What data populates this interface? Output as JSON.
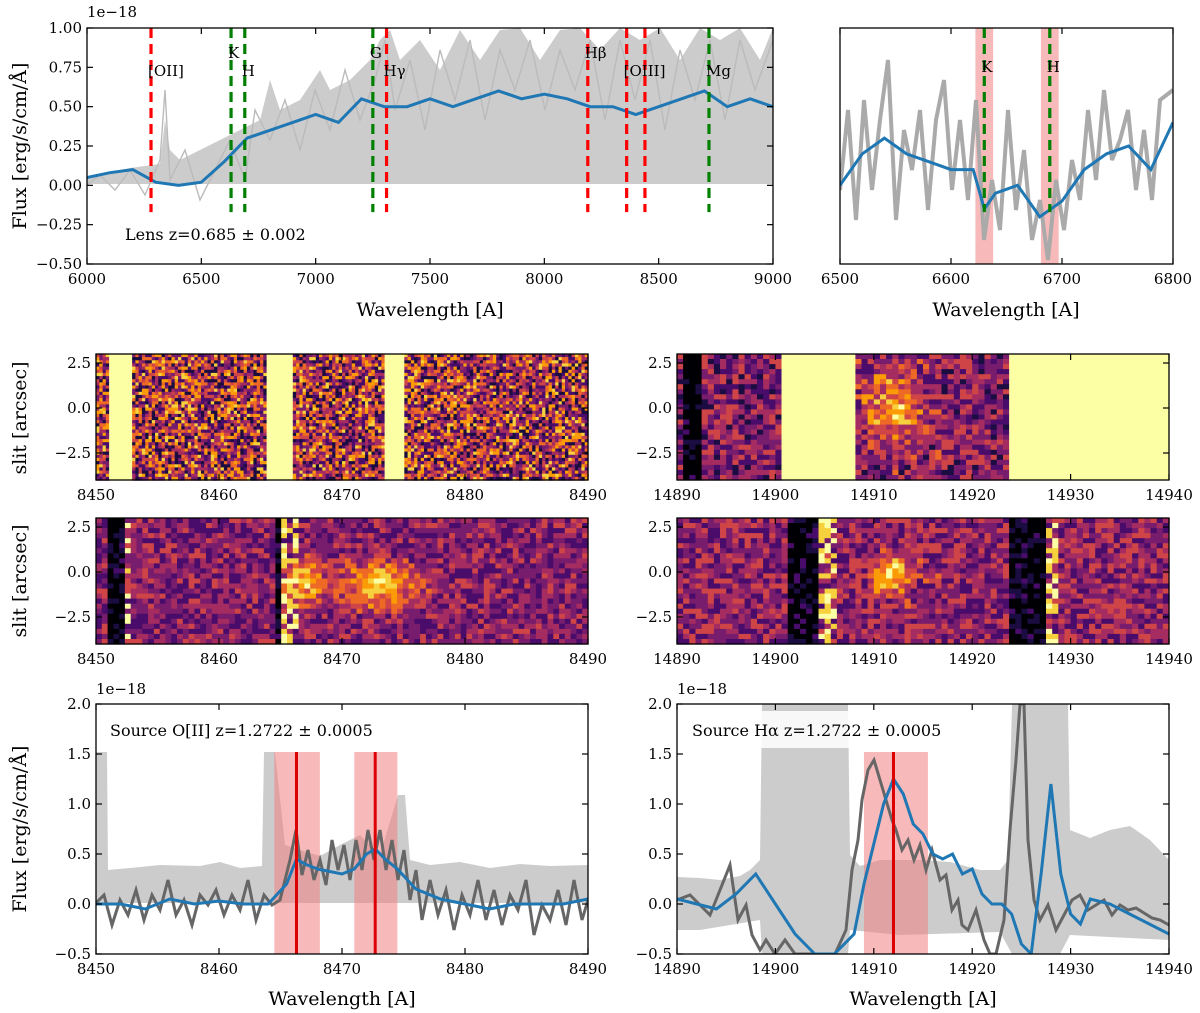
{
  "chart_data": [
    {
      "id": "spec-lens",
      "type": "line",
      "xlim": [
        6000,
        9000
      ],
      "ylim": [
        -0.5,
        1.0
      ],
      "xticks": [
        6000,
        6500,
        7000,
        7500,
        8000,
        8500,
        9000
      ],
      "yticks": [
        -0.5,
        -0.25,
        0.0,
        0.25,
        0.5,
        0.75,
        1.0
      ],
      "ytick_labels": [
        "−0.50",
        "−0.25",
        "0.00",
        "0.25",
        "0.50",
        "0.75",
        "1.00"
      ],
      "xlabel": "Wavelength [A]",
      "ylabel": "Flux [erg/s/cm/Å]",
      "exponent": "1e−18",
      "annotation": "Lens z=0.685 ± 0.002",
      "lines": [
        {
          "x": 6280,
          "label": "[OII]",
          "color": "#ff0000"
        },
        {
          "x": 6630,
          "label": "K",
          "color": "#008000"
        },
        {
          "x": 6690,
          "label": "H",
          "color": "#008000"
        },
        {
          "x": 7250,
          "label": "G",
          "color": "#008000"
        },
        {
          "x": 7310,
          "label": "Hγ",
          "color": "#ff0000"
        },
        {
          "x": 8190,
          "label": "Hβ",
          "color": "#ff0000"
        },
        {
          "x": 8360,
          "label": "[OIII]",
          "color": "#ff0000"
        },
        {
          "x": 8440,
          "label": "",
          "color": "#ff0000"
        },
        {
          "x": 8720,
          "label": "Mg",
          "color": "#008000"
        }
      ],
      "series": [
        {
          "name": "smoothed spectrum",
          "color": "#1f77b4",
          "x": [
            6000,
            6100,
            6200,
            6300,
            6400,
            6500,
            6600,
            6700,
            6800,
            6900,
            7000,
            7100,
            7200,
            7300,
            7400,
            7500,
            7600,
            7700,
            7800,
            7900,
            8000,
            8100,
            8200,
            8300,
            8400,
            8500,
            8600,
            8700,
            8800,
            8900,
            9000
          ],
          "y": [
            0.05,
            0.08,
            0.1,
            0.02,
            0.0,
            0.02,
            0.15,
            0.3,
            0.35,
            0.4,
            0.45,
            0.4,
            0.55,
            0.5,
            0.5,
            0.55,
            0.5,
            0.55,
            0.6,
            0.55,
            0.58,
            0.55,
            0.5,
            0.5,
            0.45,
            0.5,
            0.55,
            0.6,
            0.5,
            0.55,
            0.5
          ]
        }
      ]
    },
    {
      "id": "spec-lens-zoom",
      "type": "line",
      "xlim": [
        6500,
        6800
      ],
      "ylim": [
        -0.5,
        1.0
      ],
      "xticks": [
        6500,
        6600,
        6700,
        6800
      ],
      "xlabel": "Wavelength [A]",
      "bands": [
        {
          "x0": 6622,
          "x1": 6638
        },
        {
          "x0": 6681,
          "x1": 6697
        }
      ],
      "lines": [
        {
          "x": 6630,
          "label": "K",
          "color": "#008000"
        },
        {
          "x": 6689,
          "label": "H",
          "color": "#008000"
        }
      ],
      "series": [
        {
          "name": "smoothed spectrum",
          "color": "#1f77b4",
          "x": [
            6500,
            6520,
            6540,
            6560,
            6580,
            6600,
            6620,
            6630,
            6640,
            6660,
            6680,
            6700,
            6720,
            6740,
            6760,
            6780,
            6800
          ],
          "y": [
            0.0,
            0.2,
            0.3,
            0.2,
            0.15,
            0.1,
            0.1,
            -0.15,
            -0.05,
            0.0,
            -0.2,
            -0.1,
            0.1,
            0.2,
            0.25,
            0.1,
            0.4
          ]
        }
      ]
    },
    {
      "id": "img-8450-top",
      "type": "heatmap",
      "xlim": [
        8450,
        8490
      ],
      "ylim": [
        -4,
        3
      ],
      "xticks": [
        8450,
        8460,
        8470,
        8480,
        8490
      ],
      "yticks": [
        -2.5,
        0.0,
        2.5
      ],
      "ytick_labels": [
        "−2.5",
        "0.0",
        "2.5"
      ],
      "ylabel": "slit [arcsec]",
      "saturated_columns": [
        [
          8451,
          8453
        ],
        [
          8464,
          8466
        ],
        [
          8473.5,
          8475
        ]
      ]
    },
    {
      "id": "img-14890-top",
      "type": "heatmap",
      "xlim": [
        14890,
        14940
      ],
      "ylim": [
        -4,
        3
      ],
      "xticks": [
        14890,
        14900,
        14910,
        14920,
        14930,
        14940
      ],
      "yticks": [
        -2.5,
        0.0,
        2.5
      ],
      "ytick_labels": [
        "−2.5",
        "0.0",
        "2.5"
      ],
      "saturated_columns": [
        [
          14900.5,
          14908
        ],
        [
          14924,
          14940
        ]
      ]
    },
    {
      "id": "img-8450-bottom",
      "type": "heatmap",
      "xlim": [
        8450,
        8490
      ],
      "ylim": [
        -4,
        3
      ],
      "xticks": [
        8450,
        8460,
        8470,
        8480,
        8490
      ],
      "yticks": [
        -2.5,
        0.0,
        2.5
      ],
      "ytick_labels": [
        "−2.5",
        "0.0",
        "2.5"
      ],
      "ylabel": "slit [arcsec]"
    },
    {
      "id": "img-14890-bottom",
      "type": "heatmap",
      "xlim": [
        14890,
        14940
      ],
      "ylim": [
        -4,
        3
      ],
      "xticks": [
        14890,
        14900,
        14910,
        14920,
        14930,
        14940
      ],
      "yticks": [
        -2.5,
        0.0,
        2.5
      ],
      "ytick_labels": [
        "−2.5",
        "0.0",
        "2.5"
      ]
    },
    {
      "id": "spec-oii",
      "type": "line",
      "xlim": [
        8450,
        8490
      ],
      "ylim": [
        -0.5,
        2.0
      ],
      "xticks": [
        8450,
        8460,
        8470,
        8480,
        8490
      ],
      "yticks": [
        -0.5,
        0.0,
        0.5,
        1.0,
        1.5,
        2.0
      ],
      "ytick_labels": [
        "−0.5",
        "0.0",
        "0.5",
        "1.0",
        "1.5",
        "2.0"
      ],
      "xlabel": "Wavelength [A]",
      "ylabel": "Flux [erg/s/cm/Å]",
      "exponent": "1e−18",
      "annotation": "Source O[II] z=1.2722 ± 0.0005",
      "bands": [
        {
          "x0": 8464.5,
          "x1": 8468.2
        },
        {
          "x0": 8471.0,
          "x1": 8474.5
        }
      ],
      "lines": [
        {
          "x": 8466.3,
          "label": "",
          "color": "#dd0000"
        },
        {
          "x": 8472.7,
          "label": "",
          "color": "#dd0000"
        }
      ],
      "series": [
        {
          "name": "smoothed spectrum",
          "color": "#1f77b4",
          "x": [
            8450,
            8452,
            8454,
            8456,
            8458,
            8460,
            8462,
            8464,
            8465.5,
            8466.3,
            8467,
            8468,
            8470,
            8471,
            8472,
            8472.7,
            8473.5,
            8474.5,
            8476,
            8478,
            8480,
            8482,
            8484,
            8486,
            8488,
            8490
          ],
          "y": [
            0.0,
            0.0,
            -0.05,
            0.05,
            0.0,
            0.03,
            0.0,
            0.0,
            0.2,
            0.45,
            0.4,
            0.35,
            0.3,
            0.35,
            0.5,
            0.55,
            0.45,
            0.35,
            0.15,
            0.05,
            0.0,
            -0.05,
            0.0,
            0.0,
            0.0,
            0.05
          ]
        }
      ]
    },
    {
      "id": "spec-ha",
      "type": "line",
      "xlim": [
        14890,
        14940
      ],
      "ylim": [
        -0.5,
        2.0
      ],
      "xticks": [
        14890,
        14900,
        14910,
        14920,
        14930,
        14940
      ],
      "yticks": [
        -0.5,
        0.0,
        0.5,
        1.0,
        1.5,
        2.0
      ],
      "ytick_labels": [
        "−0.5",
        "0.0",
        "0.5",
        "1.0",
        "1.5",
        "2.0"
      ],
      "xlabel": "Wavelength [A]",
      "exponent": "1e−18",
      "annotation": "Source Hα z=1.2722 ± 0.0005",
      "bands": [
        {
          "x0": 14909,
          "x1": 14915.5
        }
      ],
      "lines": [
        {
          "x": 14912,
          "label": "",
          "color": "#dd0000"
        }
      ],
      "series": [
        {
          "name": "smoothed spectrum",
          "color": "#1f77b4",
          "x": [
            14890,
            14892,
            14894,
            14896,
            14898,
            14900,
            14902,
            14904,
            14906,
            14908,
            14909,
            14910,
            14911,
            14912,
            14913,
            14914,
            14915,
            14916,
            14917,
            14918,
            14919,
            14920,
            14921,
            14922,
            14923,
            14924,
            14925,
            14926,
            14927,
            14928,
            14929,
            14930,
            14931,
            14932,
            14934,
            14936,
            14938,
            14940
          ],
          "y": [
            0.05,
            0.0,
            -0.05,
            0.1,
            0.3,
            0.0,
            -0.3,
            -0.5,
            -0.5,
            -0.3,
            0.2,
            0.6,
            1.0,
            1.25,
            1.1,
            0.8,
            0.7,
            0.5,
            0.45,
            0.5,
            0.3,
            0.35,
            0.1,
            0.0,
            0.0,
            -0.1,
            -0.4,
            -0.5,
            0.3,
            1.2,
            0.3,
            -0.1,
            -0.2,
            0.05,
            0.0,
            -0.1,
            -0.2,
            -0.3
          ]
        }
      ]
    }
  ]
}
